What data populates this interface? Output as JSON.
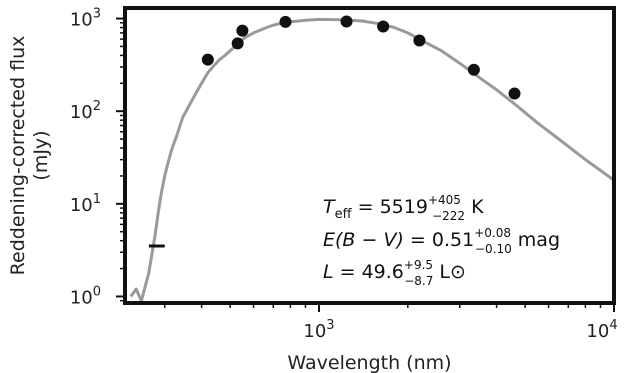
{
  "chart_data": {
    "type": "scatter",
    "title": "",
    "xlabel": "Wavelength (nm)",
    "ylabel_line1": "Reddening-corrected flux",
    "ylabel_line2": "(mJy)",
    "x_scale": "log",
    "y_scale": "log",
    "xlim": [
      220,
      10000
    ],
    "ylim": [
      0.85,
      1300
    ],
    "grid": false,
    "x_ticks": [
      {
        "value": 1000,
        "base": "10",
        "exp": "3"
      },
      {
        "value": 10000,
        "base": "10",
        "exp": "4"
      }
    ],
    "y_ticks": [
      {
        "value": 1,
        "base": "10",
        "exp": "0"
      },
      {
        "value": 10,
        "base": "10",
        "exp": "1"
      },
      {
        "value": 100,
        "base": "10",
        "exp": "2"
      },
      {
        "value": 1000,
        "base": "10",
        "exp": "3"
      }
    ],
    "photometry": {
      "name": "photometry",
      "color": "#111111",
      "x": [
        420,
        530,
        550,
        770,
        1240,
        1650,
        2190,
        3350,
        4600
      ],
      "y": [
        360,
        540,
        740,
        920,
        930,
        820,
        580,
        280,
        155
      ]
    },
    "upper_limit": {
      "x_range": [
        265,
        300
      ],
      "y": 3.5,
      "color": "#111111"
    },
    "model": {
      "name": "model spectrum",
      "color": "#9a9a9a",
      "x": [
        230,
        240,
        250,
        258,
        265,
        272,
        278,
        285,
        292,
        300,
        308,
        318,
        330,
        345,
        360,
        380,
        400,
        420,
        440,
        460,
        480,
        500,
        520,
        540,
        560,
        600,
        650,
        700,
        750,
        800,
        900,
        1000,
        1200,
        1400,
        1600,
        1800,
        2000,
        2300,
        2600,
        3000,
        3500,
        4000,
        4600,
        5500,
        6500,
        8000,
        10000
      ],
      "y": [
        1.0,
        1.2,
        0.9,
        1.3,
        1.8,
        3.0,
        4.5,
        8.0,
        13,
        20,
        28,
        40,
        55,
        85,
        110,
        150,
        200,
        260,
        310,
        360,
        400,
        450,
        500,
        560,
        620,
        700,
        780,
        850,
        890,
        920,
        960,
        980,
        970,
        940,
        880,
        800,
        700,
        550,
        450,
        330,
        230,
        170,
        120,
        75,
        50,
        30,
        18
      ]
    },
    "annotations": [
      {
        "main": "T",
        "sub": "eff",
        "value": " = 5519",
        "sup": "+405",
        "subval": "−222",
        "unit": " K"
      },
      {
        "main": "E(B − V)",
        "value": " = 0.51",
        "sup": "+0.08",
        "subval": "−0.10",
        "unit": " mag"
      },
      {
        "main": "L",
        "value": " = 49.6",
        "sup": "+9.5",
        "subval": "−8.7",
        "unit": " L⊙"
      }
    ]
  }
}
